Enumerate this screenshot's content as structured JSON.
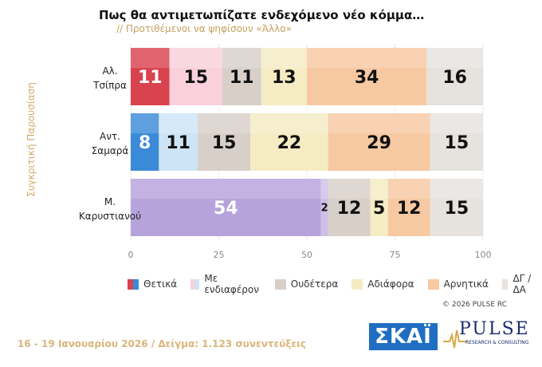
{
  "title": "Πως θα αντιμετωπίζατε ενδεχόμενο νέο κόμμα…",
  "subtitle": "// Προτιθέμενοι να ψηφίσουν «Άλλο»",
  "side_label": "Συγκριτική Παρουσίαση",
  "copyright": "© 2026 PULSE RC",
  "footer": "16 - 19 Ιανουαρίου 2026 / Δείγμα: 1.123 συνεντεύξεις",
  "logos": {
    "skai": "ΣΚΑΪ",
    "pulse": "PULSE",
    "pulse_sub": "RESEARCH & CONSULTING"
  },
  "chart_data": {
    "type": "bar",
    "orientation": "horizontal",
    "stacked": true,
    "categories": [
      [
        "Αλ.",
        "Τσίπρα"
      ],
      [
        "Αντ.",
        "Σαμαρά"
      ],
      [
        "Μ.",
        "Καρυστιανού"
      ]
    ],
    "series": [
      {
        "name": "Θετικά",
        "values": [
          11,
          8,
          null
        ],
        "color": "#d9434e",
        "label_color": "#ffffff"
      },
      {
        "name": "Με ενδιαφέρον",
        "values": [
          15,
          11,
          null
        ],
        "color": "#f9d0dc",
        "label_color": "#111111"
      },
      {
        "name": "Ουδέτερα",
        "values": [
          11,
          15,
          12
        ],
        "color": "#d8cfc8",
        "label_color": "#111111"
      },
      {
        "name": "Αδιάφορα",
        "values": [
          13,
          22,
          5
        ],
        "color": "#f5ecc3",
        "label_color": "#111111"
      },
      {
        "name": "Αρνητικά",
        "values": [
          34,
          29,
          12
        ],
        "color": "#f7c9a2",
        "label_color": "#111111"
      },
      {
        "name": "ΔΓ / ΔΑ",
        "values": [
          16,
          15,
          15
        ],
        "color": "#e6e2de",
        "label_color": "#111111"
      }
    ],
    "extra_segments": [
      {
        "category_index": 1,
        "series_index": 0,
        "color": "#3a8ad8",
        "label_color": "#ffffff"
      },
      {
        "category_index": 1,
        "series_index": 1,
        "color": "#cde4f7",
        "label_color": "#111111"
      },
      {
        "category_index": 2,
        "before_series": 2,
        "values": [
          54,
          2
        ],
        "colors": [
          "#b7a3dc",
          "#cdbfe9"
        ],
        "label_colors": [
          "#ffffff",
          "#111111"
        ]
      }
    ],
    "xlim": [
      0,
      100
    ],
    "xticks": [
      0,
      25,
      50,
      75,
      100
    ],
    "grid": true,
    "legend_position": "bottom",
    "watermark": "PULSE"
  }
}
